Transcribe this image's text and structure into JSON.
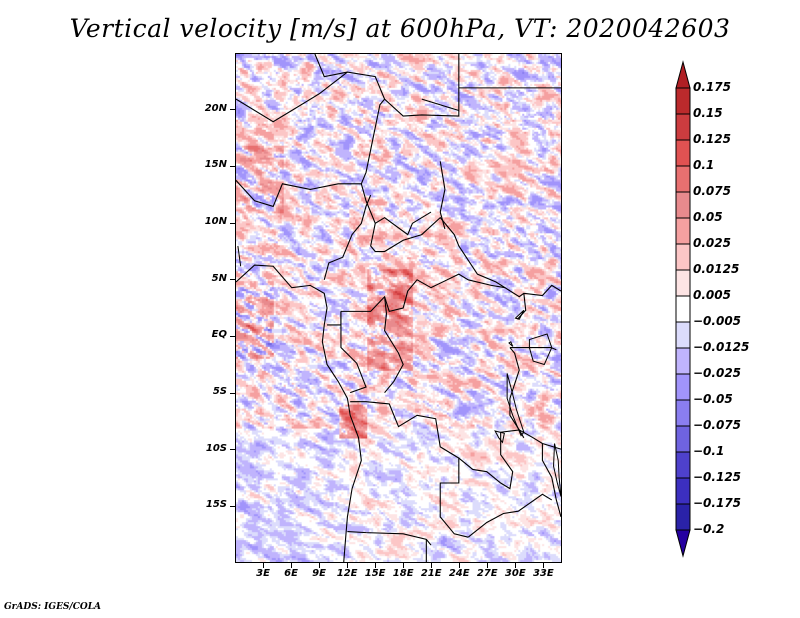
{
  "title": "Vertical velocity [m/s] at 600hPa, VT: 2020042603",
  "footer": "GrADS: IGES/COLA",
  "map": {
    "projection": "latlon",
    "lon_range": [
      0,
      35
    ],
    "lat_range": [
      -20,
      25
    ],
    "y_ticks": [
      {
        "value": 20,
        "label": "20N"
      },
      {
        "value": 15,
        "label": "15N"
      },
      {
        "value": 10,
        "label": "10N"
      },
      {
        "value": 5,
        "label": "5N"
      },
      {
        "value": 0,
        "label": "EQ"
      },
      {
        "value": -5,
        "label": "5S"
      },
      {
        "value": -10,
        "label": "10S"
      },
      {
        "value": -15,
        "label": "15S"
      }
    ],
    "x_ticks": [
      {
        "value": 3,
        "label": "3E"
      },
      {
        "value": 6,
        "label": "6E"
      },
      {
        "value": 9,
        "label": "9E"
      },
      {
        "value": 12,
        "label": "12E"
      },
      {
        "value": 15,
        "label": "15E"
      },
      {
        "value": 18,
        "label": "18E"
      },
      {
        "value": 21,
        "label": "21E"
      },
      {
        "value": 24,
        "label": "24E"
      },
      {
        "value": 27,
        "label": "27E"
      },
      {
        "value": 30,
        "label": "30E"
      },
      {
        "value": 33,
        "label": "33E"
      }
    ],
    "variable": "Vertical velocity",
    "units": "m/s",
    "level": "600hPa",
    "valid_time": "2020042603"
  },
  "colorbar": {
    "orientation": "vertical",
    "position": "right",
    "extend": "both",
    "levels": [
      {
        "label": "0.175",
        "value": 0.175
      },
      {
        "label": "0.15",
        "value": 0.15
      },
      {
        "label": "0.125",
        "value": 0.125
      },
      {
        "label": "0.1",
        "value": 0.1
      },
      {
        "label": "0.075",
        "value": 0.075
      },
      {
        "label": "0.05",
        "value": 0.05
      },
      {
        "label": "0.025",
        "value": 0.025
      },
      {
        "label": "0.0125",
        "value": 0.0125
      },
      {
        "label": "0.005",
        "value": 0.005
      },
      {
        "label": "−0.005",
        "value": -0.005
      },
      {
        "label": "−0.0125",
        "value": -0.0125
      },
      {
        "label": "−0.025",
        "value": -0.025
      },
      {
        "label": "−0.05",
        "value": -0.05
      },
      {
        "label": "−0.075",
        "value": -0.075
      },
      {
        "label": "−0.1",
        "value": -0.1
      },
      {
        "label": "−0.125",
        "value": -0.125
      },
      {
        "label": "−0.175",
        "value": -0.175
      },
      {
        "label": "−0.2",
        "value": -0.2
      }
    ],
    "colors": [
      "#b01f24",
      "#bb2a2c",
      "#cc3c3f",
      "#e05252",
      "#e87070",
      "#e88a8d",
      "#f5a0a0",
      "#fcc6c6",
      "#fde4e4",
      "#ffffff",
      "#dcdcfc",
      "#c0b4fd",
      "#a194fb",
      "#8a7ef0",
      "#6f63e0",
      "#4e41cc",
      "#3c2fc0",
      "#2a22a8",
      "#2500a0"
    ]
  },
  "chart_data": {
    "type": "heatmap",
    "title": "Vertical velocity [m/s] at 600hPa, VT: 2020042603",
    "xlabel": "",
    "ylabel": "",
    "xlim": [
      0,
      35
    ],
    "ylim": [
      -20,
      25
    ],
    "x_ticks": [
      "3E",
      "6E",
      "9E",
      "12E",
      "15E",
      "18E",
      "21E",
      "24E",
      "27E",
      "30E",
      "33E"
    ],
    "y_ticks": [
      "20N",
      "15N",
      "10N",
      "5N",
      "EQ",
      "5S",
      "10S",
      "15S"
    ],
    "color_levels": [
      -0.2,
      -0.175,
      -0.125,
      -0.1,
      -0.075,
      -0.05,
      -0.025,
      -0.0125,
      -0.005,
      0.005,
      0.0125,
      0.025,
      0.05,
      0.075,
      0.1,
      0.125,
      0.15,
      0.175
    ],
    "legend": "right",
    "grid": false
  }
}
